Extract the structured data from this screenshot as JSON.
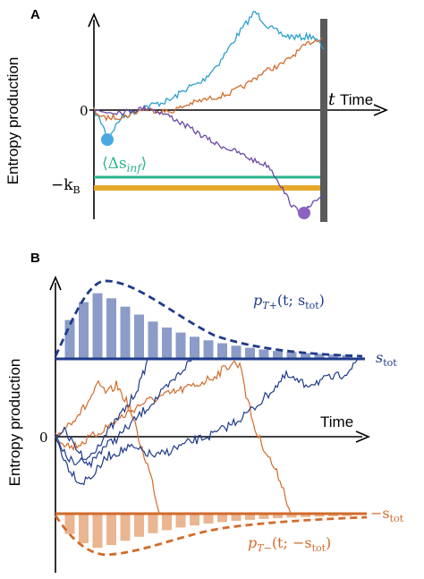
{
  "panel_a": {
    "letter": "A",
    "ylabel": "Entropy production",
    "xlabel": "Time",
    "zero_label": "0",
    "kb_label": "−k",
    "kb_sub": "B",
    "t_label": "t",
    "delta_label": "⟨Δs",
    "delta_sub": "inf",
    "delta_close": "⟩",
    "colors": {
      "cyan": "#2a9fd0",
      "orange": "#d26b2a",
      "purple": "#6b48a6",
      "green": "#2bb38f",
      "gold": "#e5a82b",
      "bar": "#5a5a5a"
    }
  },
  "panel_b": {
    "letter": "B",
    "ylabel": "Entropy production",
    "xlabel": "Time",
    "zero_label": "0",
    "ptop_p": "p",
    "ptop_sub": "T+",
    "ptop_arg": "(t; s",
    "ptop_argsub": "tot",
    "ptop_close": ")",
    "pbot_p": "p",
    "pbot_sub": "T−",
    "pbot_arg": "(t; −s",
    "pbot_argsub": "tot",
    "pbot_close": ")",
    "stot_top": "s",
    "stot_top_sub": "tot",
    "stot_bot": "−s",
    "stot_bot_sub": "tot",
    "colors": {
      "navy": "#1f3a8a",
      "bluebar": "#8c9cc8",
      "orange": "#d26b2a",
      "orangebar": "#eab591"
    }
  }
}
